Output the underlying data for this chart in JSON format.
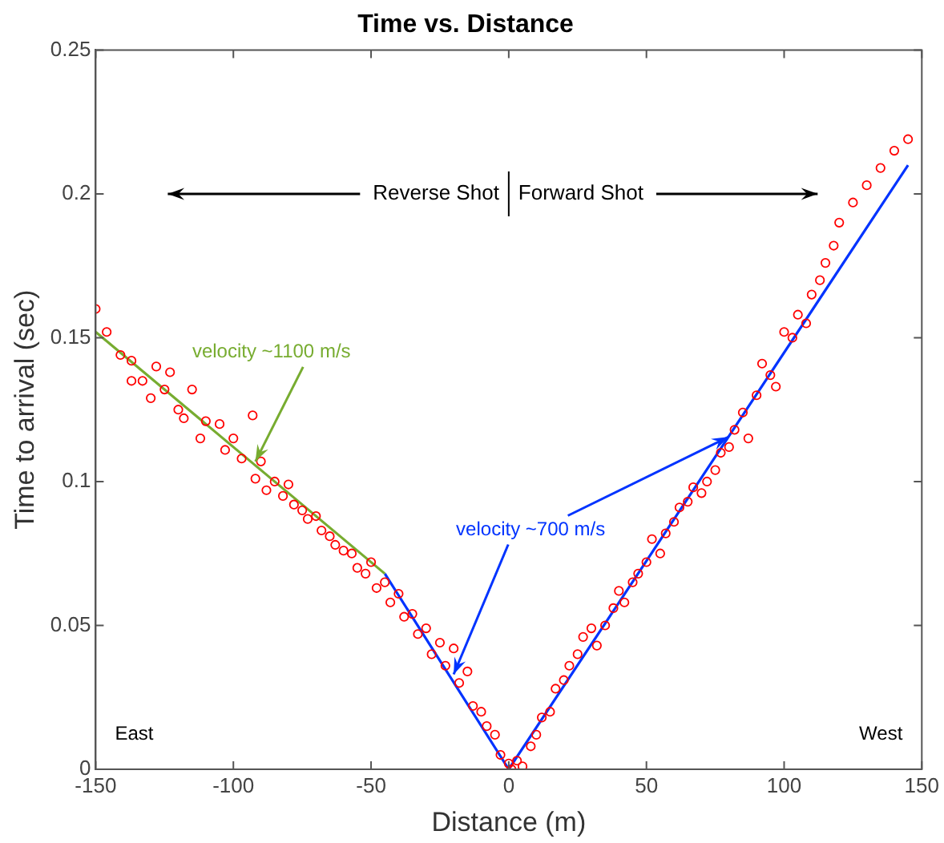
{
  "chart_data": {
    "type": "scatter",
    "title": "Time vs. Distance",
    "xlabel": "Distance (m)",
    "ylabel": "Time to arrival (sec)",
    "xlim": [
      -150,
      150
    ],
    "xticks": [
      -150,
      -100,
      -50,
      0,
      50,
      100,
      150
    ],
    "ylim": [
      0,
      0.25
    ],
    "yticks": [
      0,
      0.05,
      0.1,
      0.15,
      0.2,
      0.25
    ],
    "grid": false,
    "legend": false,
    "annotations": [
      "Reverse Shot",
      "Forward Shot",
      "East",
      "West",
      {
        "text": "velocity ~1100 m/s",
        "x": -92,
        "y": 0.107
      },
      {
        "text": "velocity ~700 m/s",
        "x": -20,
        "y": 0.033
      }
    ],
    "series": [
      {
        "marker": "circle",
        "color": "#ff0000",
        "x": [
          -150,
          -146,
          -141,
          -137,
          -137,
          -133,
          -130,
          -128,
          -125,
          -123,
          -120,
          -118,
          -115,
          -112,
          -110,
          -105,
          -103,
          -100,
          -97,
          -93,
          -92,
          -90,
          -88,
          -85,
          -82,
          -80,
          -78,
          -75,
          -73,
          -70,
          -68,
          -65,
          -63,
          -60,
          -57,
          -55,
          -52,
          -50,
          -48,
          -45,
          -43,
          -40,
          -38,
          -35,
          -33,
          -30,
          -28,
          -25,
          -23,
          -20,
          -18,
          -15,
          -13,
          -10,
          -8,
          -5,
          -3,
          0,
          1,
          3,
          5,
          8,
          10,
          12,
          15,
          17,
          20,
          22,
          25,
          27,
          30,
          32,
          35,
          38,
          40,
          42,
          45,
          47,
          50,
          52,
          55,
          57,
          60,
          62,
          65,
          67,
          70,
          72,
          75,
          77,
          80,
          82,
          85,
          87,
          90,
          92,
          95,
          97,
          100,
          103,
          105,
          108,
          110,
          113,
          115,
          118,
          120,
          125,
          130,
          135,
          140,
          145
        ],
        "values": [
          0.16,
          0.152,
          0.144,
          0.142,
          0.135,
          0.135,
          0.129,
          0.14,
          0.132,
          0.138,
          0.125,
          0.122,
          0.132,
          0.115,
          0.121,
          0.12,
          0.111,
          0.115,
          0.108,
          0.123,
          0.101,
          0.107,
          0.097,
          0.1,
          0.095,
          0.099,
          0.092,
          0.09,
          0.087,
          0.088,
          0.083,
          0.081,
          0.078,
          0.076,
          0.075,
          0.07,
          0.068,
          0.072,
          0.063,
          0.065,
          0.058,
          0.061,
          0.053,
          0.054,
          0.047,
          0.049,
          0.04,
          0.044,
          0.036,
          0.042,
          0.03,
          0.034,
          0.022,
          0.02,
          0.015,
          0.012,
          0.005,
          0.002,
          0,
          0.003,
          0.001,
          0.008,
          0.012,
          0.018,
          0.02,
          0.028,
          0.031,
          0.036,
          0.04,
          0.046,
          0.049,
          0.043,
          0.05,
          0.056,
          0.062,
          0.058,
          0.065,
          0.068,
          0.072,
          0.08,
          0.075,
          0.082,
          0.086,
          0.091,
          0.093,
          0.098,
          0.096,
          0.1,
          0.104,
          0.11,
          0.112,
          0.118,
          0.124,
          0.115,
          0.13,
          0.141,
          0.137,
          0.133,
          0.152,
          0.15,
          0.158,
          0.155,
          0.165,
          0.17,
          0.176,
          0.182,
          0.19,
          0.197,
          0.203,
          0.209,
          0.215,
          0.219
        ]
      },
      {
        "type": "line",
        "marker": "none",
        "color": "#77ac30",
        "x": [
          -150,
          -45
        ],
        "values": [
          0.152,
          0.068
        ]
      },
      {
        "type": "line",
        "marker": "none",
        "color": "#0033ff",
        "x": [
          -45,
          0,
          145
        ],
        "values": [
          0.068,
          0,
          0.21
        ]
      }
    ]
  }
}
